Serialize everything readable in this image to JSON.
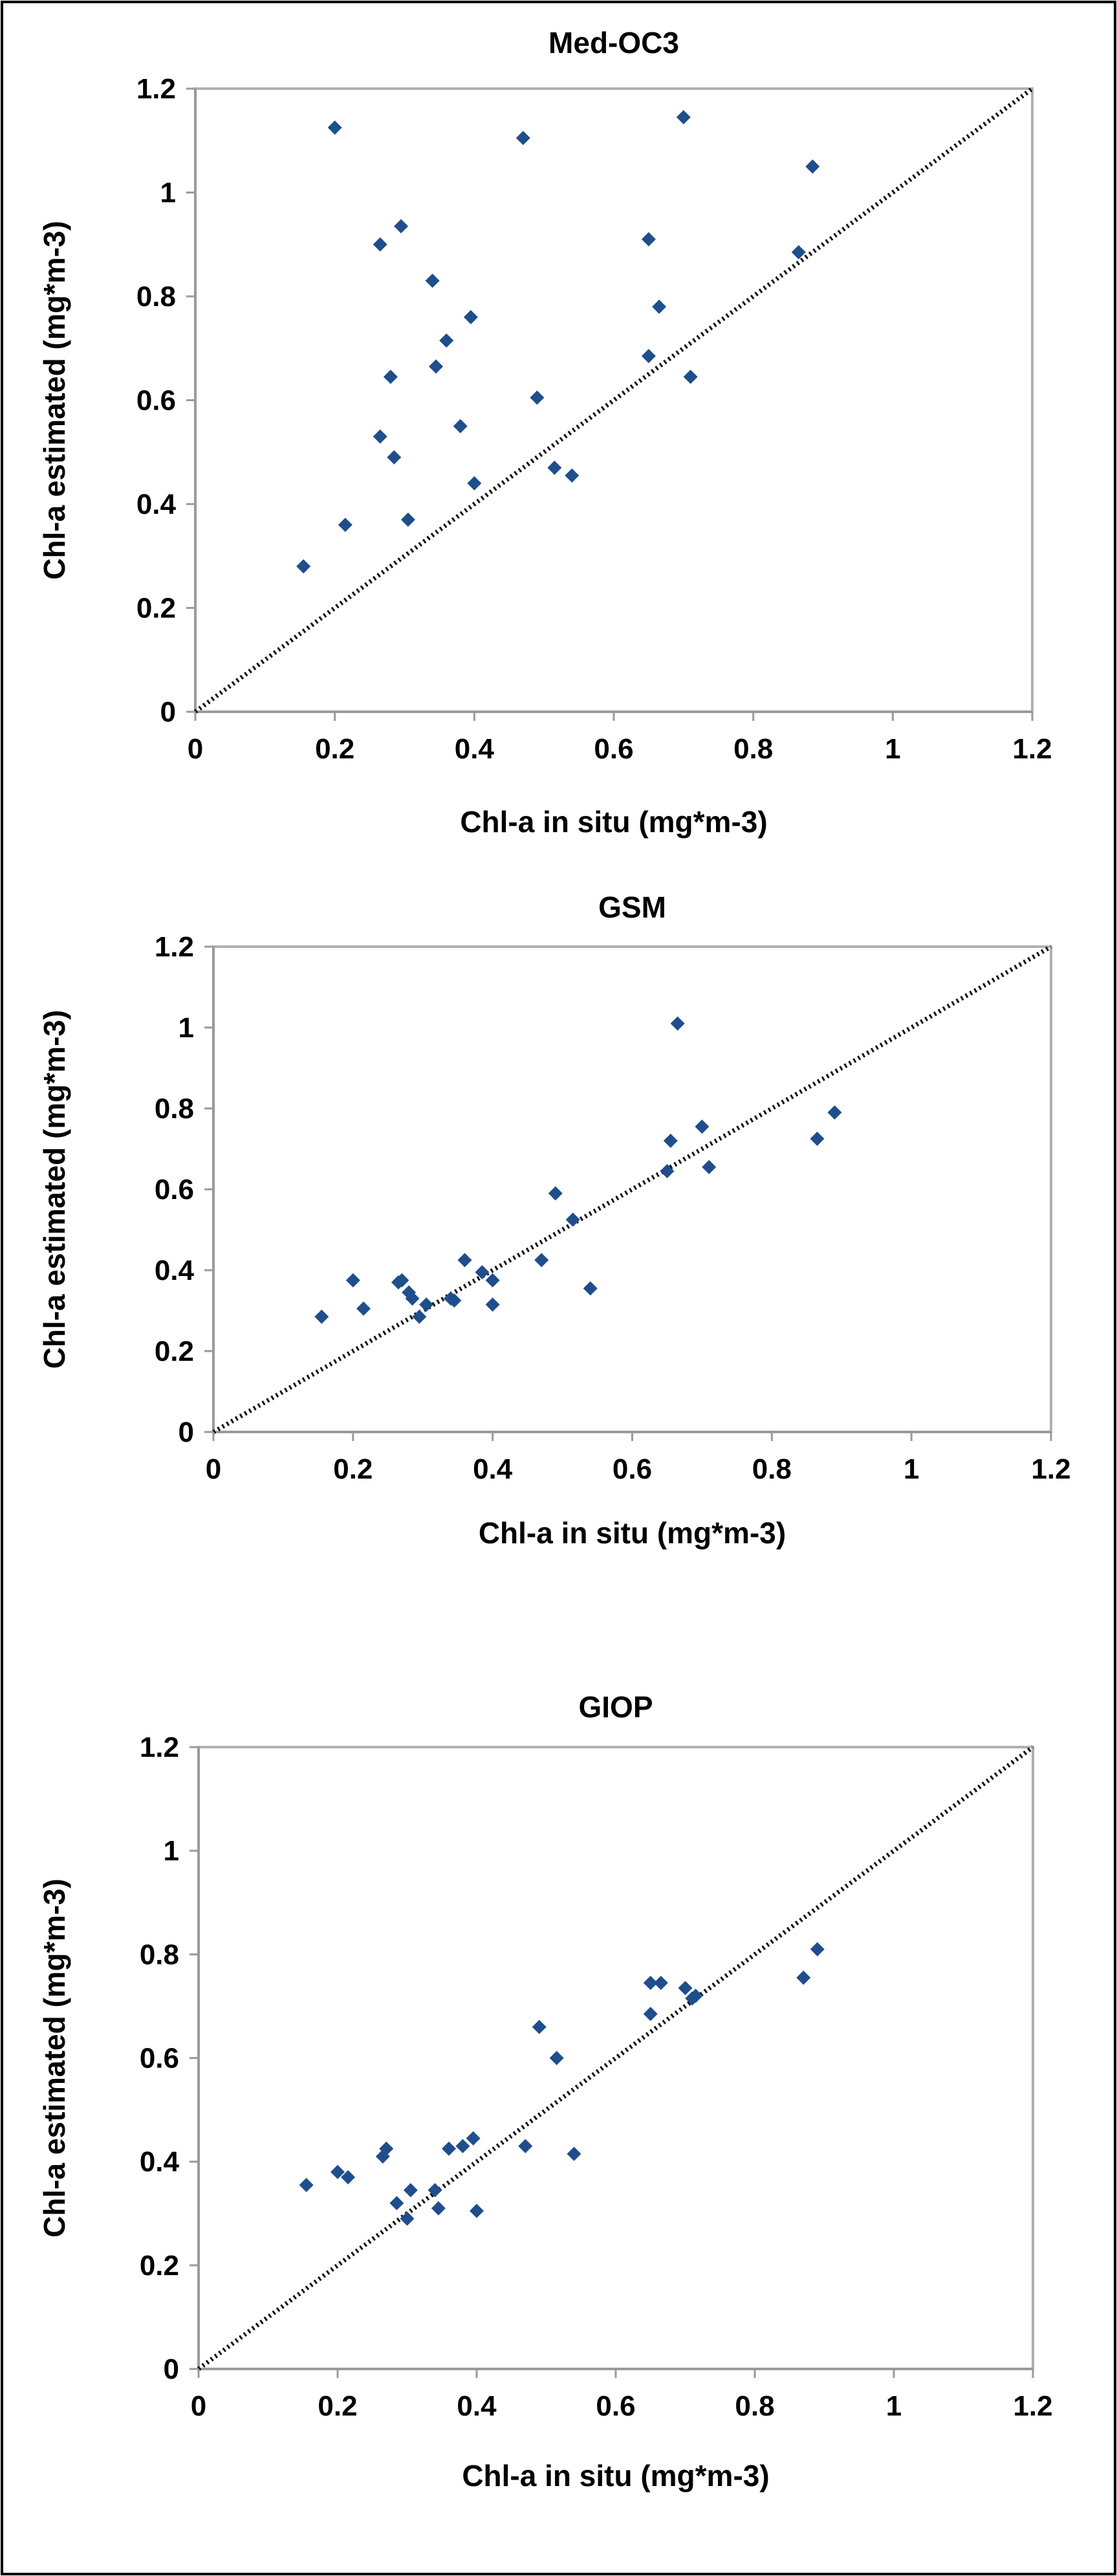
{
  "figure": {
    "border_color": "#000000",
    "background": "#ffffff"
  },
  "chart_data": [
    {
      "type": "scatter",
      "title": "Med-OC3",
      "xlabel": "Chl-a in situ (mg*m-3)",
      "ylabel": "Chl-a estimated (mg*m-3)",
      "xlim": [
        0,
        1.2
      ],
      "ylim": [
        0,
        1.2
      ],
      "x_ticks": [
        "0",
        "0.2",
        "0.4",
        "0.6",
        "0.8",
        "1",
        "1.2"
      ],
      "y_ticks": [
        "0",
        "0.2",
        "0.4",
        "0.6",
        "0.8",
        "1",
        "1.2"
      ],
      "grid": false,
      "marker": "diamond",
      "marker_color": "#1f4e8c",
      "reference_line": "1:1 dotted",
      "x": [
        0.155,
        0.2,
        0.215,
        0.265,
        0.265,
        0.28,
        0.285,
        0.295,
        0.305,
        0.34,
        0.345,
        0.36,
        0.38,
        0.395,
        0.4,
        0.47,
        0.49,
        0.515,
        0.54,
        0.65,
        0.65,
        0.665,
        0.7,
        0.71,
        0.865,
        0.885
      ],
      "y": [
        0.28,
        1.125,
        0.36,
        0.9,
        0.53,
        0.645,
        0.49,
        0.935,
        0.37,
        0.83,
        0.665,
        0.715,
        0.55,
        0.76,
        0.44,
        1.105,
        0.605,
        0.47,
        0.455,
        0.91,
        0.685,
        0.78,
        1.145,
        0.645,
        0.885,
        1.05
      ]
    },
    {
      "type": "scatter",
      "title": "GSM",
      "xlabel": "Chl-a in situ (mg*m-3)",
      "ylabel": "Chl-a estimated (mg*m-3)",
      "xlim": [
        0,
        1.2
      ],
      "ylim": [
        0,
        1.2
      ],
      "x_ticks": [
        "0",
        "0.2",
        "0.4",
        "0.6",
        "0.8",
        "1",
        "1.2"
      ],
      "y_ticks": [
        "0",
        "0.2",
        "0.4",
        "0.6",
        "0.8",
        "1",
        "1.2"
      ],
      "grid": false,
      "marker": "diamond",
      "marker_color": "#1f4e8c",
      "reference_line": "1:1 dotted",
      "x": [
        0.155,
        0.2,
        0.215,
        0.265,
        0.27,
        0.28,
        0.285,
        0.295,
        0.305,
        0.34,
        0.345,
        0.36,
        0.385,
        0.4,
        0.4,
        0.47,
        0.49,
        0.515,
        0.54,
        0.65,
        0.655,
        0.665,
        0.7,
        0.71,
        0.865,
        0.89
      ],
      "y": [
        0.285,
        0.375,
        0.305,
        0.37,
        0.375,
        0.345,
        0.33,
        0.285,
        0.315,
        0.33,
        0.325,
        0.425,
        0.395,
        0.375,
        0.315,
        0.425,
        0.59,
        0.525,
        0.355,
        0.645,
        0.72,
        1.01,
        0.755,
        0.655,
        0.725,
        0.79
      ]
    },
    {
      "type": "scatter",
      "title": "GIOP",
      "xlabel": "Chl-a in situ (mg*m-3)",
      "ylabel": "Chl-a estimated (mg*m-3)",
      "xlim": [
        0,
        1.2
      ],
      "ylim": [
        0,
        1.2
      ],
      "x_ticks": [
        "0",
        "0.2",
        "0.4",
        "0.6",
        "0.8",
        "1",
        "1.2"
      ],
      "y_ticks": [
        "0",
        "0.2",
        "0.4",
        "0.6",
        "0.8",
        "1",
        "1.2"
      ],
      "grid": false,
      "marker": "diamond",
      "marker_color": "#1f4e8c",
      "reference_line": "1:1 dotted",
      "x": [
        0.155,
        0.2,
        0.215,
        0.265,
        0.27,
        0.285,
        0.3,
        0.305,
        0.34,
        0.345,
        0.36,
        0.38,
        0.395,
        0.4,
        0.47,
        0.49,
        0.515,
        0.54,
        0.65,
        0.65,
        0.665,
        0.7,
        0.71,
        0.715,
        0.87,
        0.89
      ],
      "y": [
        0.355,
        0.38,
        0.37,
        0.41,
        0.425,
        0.32,
        0.29,
        0.345,
        0.345,
        0.31,
        0.425,
        0.43,
        0.445,
        0.305,
        0.43,
        0.66,
        0.6,
        0.415,
        0.745,
        0.685,
        0.745,
        0.735,
        0.715,
        0.72,
        0.755,
        0.81
      ]
    }
  ]
}
